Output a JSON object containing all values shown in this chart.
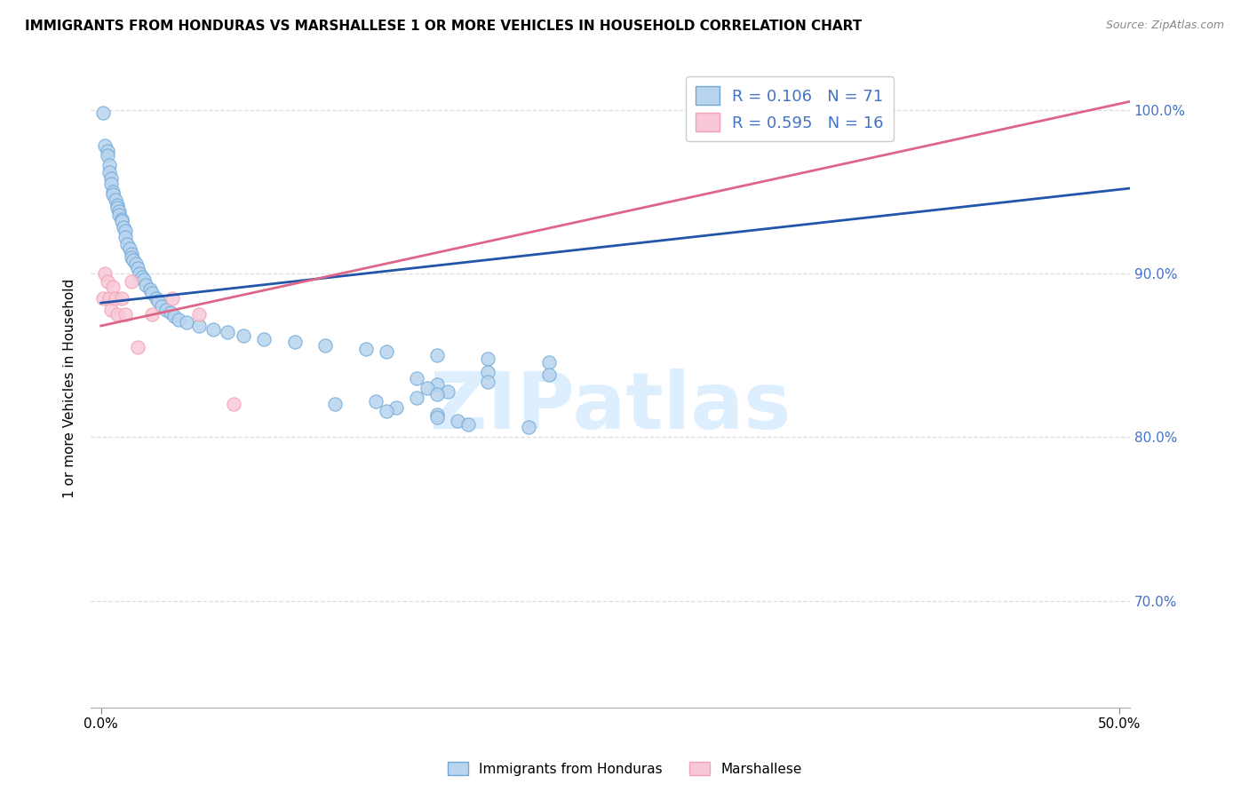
{
  "title": "IMMIGRANTS FROM HONDURAS VS MARSHALLESE 1 OR MORE VEHICLES IN HOUSEHOLD CORRELATION CHART",
  "source": "Source: ZipAtlas.com",
  "ylabel": "1 or more Vehicles in Household",
  "ylim": [
    0.635,
    1.025
  ],
  "xlim": [
    -0.005,
    0.505
  ],
  "legend1_label": "R = 0.106   N = 71",
  "legend2_label": "R = 0.595   N = 16",
  "legend1_color": "#6fa8d6",
  "legend2_color": "#f4a0b0",
  "line1_color": "#2255aa",
  "line2_color": "#dd6688",
  "dot1_color": "#b8d4ee",
  "dot2_color": "#f8c8d8",
  "watermark": "ZIPatlas",
  "watermark_color": "#ddeeff",
  "blue_points_x": [
    0.001,
    0.002,
    0.003,
    0.003,
    0.004,
    0.004,
    0.005,
    0.005,
    0.006,
    0.006,
    0.007,
    0.008,
    0.008,
    0.009,
    0.009,
    0.01,
    0.01,
    0.011,
    0.012,
    0.012,
    0.013,
    0.014,
    0.015,
    0.015,
    0.016,
    0.017,
    0.018,
    0.019,
    0.02,
    0.021,
    0.022,
    0.024,
    0.025,
    0.027,
    0.028,
    0.03,
    0.032,
    0.034,
    0.036,
    0.038,
    0.042,
    0.048,
    0.055,
    0.062,
    0.07,
    0.08,
    0.095,
    0.11,
    0.13,
    0.14,
    0.165,
    0.19,
    0.22,
    0.19,
    0.22,
    0.155,
    0.19,
    0.165,
    0.16,
    0.17,
    0.165,
    0.155,
    0.135,
    0.115,
    0.145,
    0.14,
    0.165,
    0.165,
    0.175,
    0.18,
    0.21
  ],
  "blue_points_y": [
    0.998,
    0.978,
    0.975,
    0.972,
    0.966,
    0.962,
    0.958,
    0.955,
    0.95,
    0.948,
    0.945,
    0.942,
    0.94,
    0.938,
    0.936,
    0.933,
    0.932,
    0.928,
    0.926,
    0.922,
    0.918,
    0.915,
    0.912,
    0.91,
    0.908,
    0.906,
    0.903,
    0.9,
    0.898,
    0.896,
    0.893,
    0.89,
    0.888,
    0.885,
    0.883,
    0.88,
    0.878,
    0.876,
    0.874,
    0.872,
    0.87,
    0.868,
    0.866,
    0.864,
    0.862,
    0.86,
    0.858,
    0.856,
    0.854,
    0.852,
    0.85,
    0.848,
    0.846,
    0.84,
    0.838,
    0.836,
    0.834,
    0.832,
    0.83,
    0.828,
    0.826,
    0.824,
    0.822,
    0.82,
    0.818,
    0.816,
    0.814,
    0.812,
    0.81,
    0.808,
    0.806
  ],
  "pink_points_x": [
    0.001,
    0.002,
    0.003,
    0.004,
    0.005,
    0.006,
    0.007,
    0.008,
    0.01,
    0.012,
    0.015,
    0.018,
    0.025,
    0.035,
    0.048,
    0.065
  ],
  "pink_points_y": [
    0.885,
    0.9,
    0.895,
    0.885,
    0.878,
    0.892,
    0.885,
    0.875,
    0.885,
    0.875,
    0.895,
    0.855,
    0.875,
    0.885,
    0.875,
    0.82
  ],
  "blue_line_x0": 0.0,
  "blue_line_x1": 0.505,
  "blue_line_y0": 0.882,
  "blue_line_y1": 0.952,
  "pink_line_x0": 0.0,
  "pink_line_x1": 0.505,
  "pink_line_y0": 0.868,
  "pink_line_y1": 1.005,
  "right_ytick_vals": [
    1.0,
    0.9,
    0.8,
    0.7
  ],
  "right_ytick_labels": [
    "100.0%",
    "90.0%",
    "80.0%",
    "70.0%"
  ],
  "grid_color": "#dddddd",
  "background_color": "#ffffff"
}
